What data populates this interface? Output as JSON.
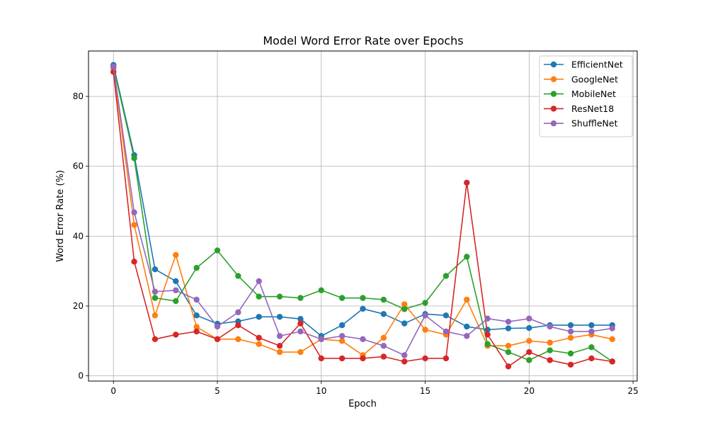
{
  "chart_data": {
    "type": "line",
    "title": "Model Word Error Rate over Epochs",
    "xlabel": "Epoch",
    "ylabel": "Word Error Rate (%)",
    "xlim": [
      -1.2,
      25.2
    ],
    "ylim": [
      -1.5,
      93
    ],
    "xticks": [
      0,
      5,
      10,
      15,
      20,
      25
    ],
    "yticks": [
      0,
      20,
      40,
      60,
      80
    ],
    "grid": true,
    "legend_position": "top-right",
    "x": [
      0,
      1,
      2,
      3,
      4,
      5,
      6,
      7,
      8,
      9,
      10,
      11,
      12,
      13,
      14,
      15,
      16,
      17,
      18,
      19,
      20,
      21,
      22,
      23,
      24
    ],
    "series": [
      {
        "name": "EfficientNet",
        "color": "#1f77b4",
        "values": [
          89.0,
          63.2,
          30.5,
          27.1,
          17.3,
          14.9,
          15.6,
          16.9,
          16.9,
          16.3,
          11.4,
          14.5,
          19.2,
          17.7,
          15.0,
          17.7,
          17.3,
          14.1,
          13.2,
          13.6,
          13.7,
          14.5,
          14.5,
          14.5,
          14.5
        ]
      },
      {
        "name": "GoogleNet",
        "color": "#ff7f0e",
        "values": [
          88.0,
          43.2,
          17.3,
          34.6,
          14.0,
          10.5,
          10.5,
          9.1,
          6.8,
          6.8,
          10.5,
          10.0,
          5.9,
          10.9,
          20.5,
          13.2,
          11.8,
          21.8,
          8.6,
          8.6,
          10.0,
          9.5,
          10.9,
          11.8,
          10.5
        ]
      },
      {
        "name": "MobileNet",
        "color": "#2ca02c",
        "values": [
          88.5,
          62.3,
          22.3,
          21.4,
          30.9,
          35.9,
          28.6,
          22.7,
          22.7,
          22.3,
          24.5,
          22.3,
          22.3,
          21.8,
          19.1,
          20.9,
          28.6,
          34.1,
          9.1,
          6.8,
          4.5,
          7.3,
          6.4,
          8.2,
          4.1
        ]
      },
      {
        "name": "ResNet18",
        "color": "#d62728",
        "values": [
          87.0,
          32.7,
          10.5,
          11.8,
          12.7,
          10.5,
          14.5,
          10.9,
          8.6,
          15.0,
          5.0,
          5.0,
          5.0,
          5.5,
          4.1,
          5.0,
          5.0,
          55.3,
          11.8,
          2.7,
          6.8,
          4.5,
          3.2,
          5.0,
          4.1
        ]
      },
      {
        "name": "ShuffleNet",
        "color": "#9467bd",
        "values": [
          88.5,
          46.8,
          24.1,
          24.5,
          21.8,
          14.1,
          18.2,
          27.1,
          11.4,
          12.7,
          10.5,
          11.4,
          10.5,
          8.6,
          5.9,
          17.3,
          12.7,
          11.4,
          16.4,
          15.5,
          16.4,
          14.1,
          12.7,
          12.7,
          13.6
        ]
      }
    ]
  }
}
